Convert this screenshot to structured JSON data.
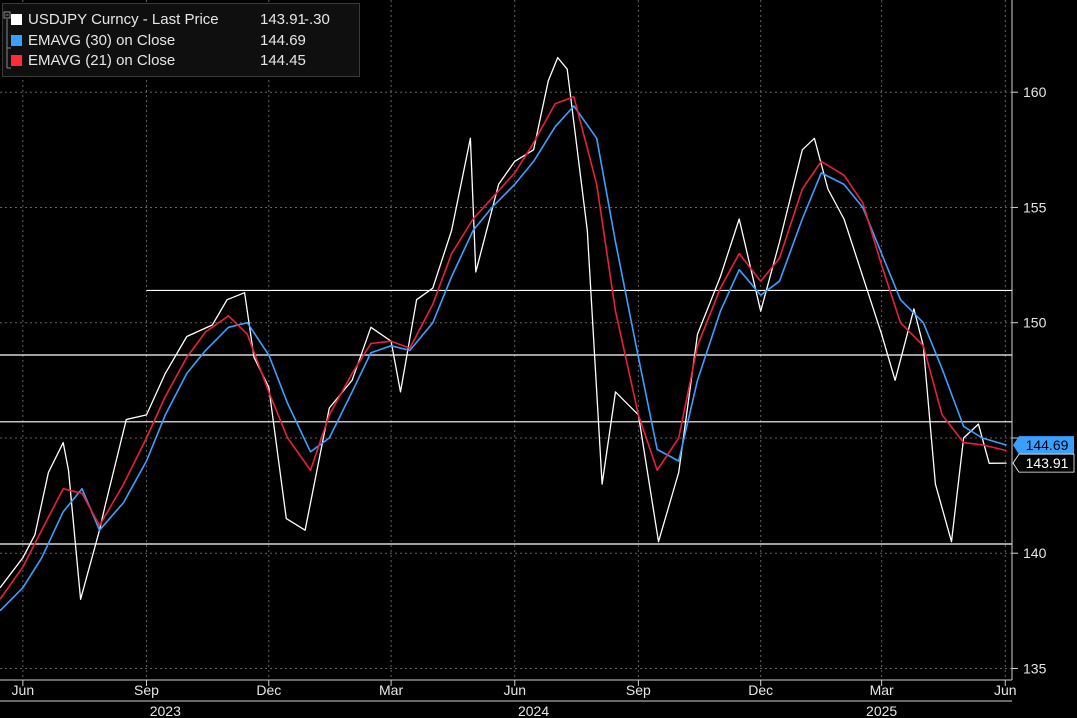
{
  "legend": [
    {
      "label": "USDJPY Curncy - Last Price",
      "value": "143.91",
      "change": "-.30",
      "color": "#ffffff"
    },
    {
      "label": "EMAVG (30)  on Close",
      "value": "144.69",
      "change": "",
      "color": "#3aa0ff"
    },
    {
      "label": "EMAVG (21)  on Close",
      "value": "144.45",
      "change": "",
      "color": "#ff2a3a"
    }
  ],
  "price_tags": {
    "ema30": "144.69",
    "last": "143.91"
  },
  "colors": {
    "background": "#000000",
    "price": "#ffffff",
    "ema30": "#3aa0ff",
    "ema21": "#e8203a",
    "grid": "#8a8a8a"
  },
  "chart_data": {
    "type": "line",
    "title": "",
    "ylabel": "",
    "ylim": [
      134.5,
      164
    ],
    "yticks": [
      135,
      140,
      145,
      150,
      155,
      160
    ],
    "yticks_labeled": [
      "135",
      "140",
      "150",
      "155",
      "160"
    ],
    "x_range": [
      "2023-05-15",
      "2025-06-06"
    ],
    "x_months": [
      "Jun",
      "Sep",
      "Dec",
      "Mar",
      "Jun",
      "Sep",
      "Dec",
      "Mar",
      "Jun"
    ],
    "x_month_dates": [
      "2023-06-01",
      "2023-09-01",
      "2023-12-01",
      "2024-03-01",
      "2024-06-01",
      "2024-09-01",
      "2024-12-01",
      "2025-03-01",
      "2025-06-01"
    ],
    "x_years": [
      {
        "label": "2023",
        "date": "2023-09-15"
      },
      {
        "label": "2024",
        "date": "2024-06-15"
      },
      {
        "label": "2025",
        "date": "2025-03-01"
      }
    ],
    "grid": true,
    "legend_position": "top-left",
    "hlines": [
      {
        "y": 151.4,
        "from": "2023-09-01"
      },
      {
        "y": 148.6,
        "from": "2023-05-15"
      },
      {
        "y": 145.7,
        "from": "2023-05-15"
      },
      {
        "y": 140.4,
        "from": "2023-05-15"
      }
    ],
    "series": [
      {
        "name": "USDJPY Curncy - Last Price",
        "x": [
          "2023-05-15",
          "2023-06-01",
          "2023-06-10",
          "2023-06-20",
          "2023-07-01",
          "2023-07-05",
          "2023-07-14",
          "2023-07-28",
          "2023-08-01",
          "2023-08-17",
          "2023-09-01",
          "2023-09-15",
          "2023-10-01",
          "2023-10-20",
          "2023-10-31",
          "2023-11-13",
          "2023-11-20",
          "2023-12-01",
          "2023-12-14",
          "2023-12-28",
          "2024-01-15",
          "2024-02-01",
          "2024-02-15",
          "2024-03-01",
          "2024-03-08",
          "2024-03-20",
          "2024-04-01",
          "2024-04-15",
          "2024-04-29",
          "2024-05-03",
          "2024-05-20",
          "2024-06-01",
          "2024-06-15",
          "2024-06-26",
          "2024-07-03",
          "2024-07-10",
          "2024-07-25",
          "2024-08-05",
          "2024-08-15",
          "2024-09-01",
          "2024-09-16",
          "2024-10-01",
          "2024-10-15",
          "2024-11-01",
          "2024-11-15",
          "2024-12-01",
          "2024-12-15",
          "2025-01-01",
          "2025-01-10",
          "2025-01-20",
          "2025-02-01",
          "2025-02-15",
          "2025-03-01",
          "2025-03-11",
          "2025-03-25",
          "2025-04-01",
          "2025-04-10",
          "2025-04-22",
          "2025-05-01",
          "2025-05-12",
          "2025-05-20",
          "2025-06-02"
        ],
        "values": [
          138.5,
          139.8,
          140.8,
          143.5,
          144.8,
          143.6,
          138.0,
          141.0,
          142.0,
          145.8,
          146.0,
          147.8,
          149.4,
          149.9,
          151.0,
          151.3,
          148.5,
          147.2,
          141.5,
          141.0,
          146.3,
          147.5,
          149.8,
          149.2,
          147.0,
          151.0,
          151.5,
          154.0,
          158.0,
          152.2,
          156.0,
          157.0,
          157.5,
          160.5,
          161.5,
          161.0,
          154.0,
          143.0,
          147.0,
          146.0,
          140.5,
          143.5,
          149.5,
          152.0,
          154.5,
          150.5,
          153.5,
          157.5,
          158.0,
          155.8,
          154.5,
          152.0,
          149.5,
          147.5,
          150.6,
          149.0,
          143.0,
          140.5,
          145.0,
          145.6,
          143.9,
          143.91
        ]
      },
      {
        "name": "EMAVG (30) on Close",
        "x": [
          "2023-05-15",
          "2023-06-01",
          "2023-06-15",
          "2023-07-01",
          "2023-07-15",
          "2023-07-28",
          "2023-08-15",
          "2023-09-01",
          "2023-09-15",
          "2023-10-01",
          "2023-10-15",
          "2023-11-01",
          "2023-11-15",
          "2023-12-01",
          "2023-12-15",
          "2024-01-01",
          "2024-01-15",
          "2024-02-01",
          "2024-02-15",
          "2024-03-01",
          "2024-03-15",
          "2024-04-01",
          "2024-04-15",
          "2024-05-01",
          "2024-05-15",
          "2024-06-01",
          "2024-06-15",
          "2024-07-01",
          "2024-07-15",
          "2024-08-01",
          "2024-08-15",
          "2024-09-01",
          "2024-09-15",
          "2024-10-01",
          "2024-10-15",
          "2024-11-01",
          "2024-11-15",
          "2024-12-01",
          "2024-12-15",
          "2025-01-01",
          "2025-01-15",
          "2025-02-01",
          "2025-02-15",
          "2025-03-01",
          "2025-03-15",
          "2025-04-01",
          "2025-04-15",
          "2025-05-01",
          "2025-05-15",
          "2025-06-02"
        ],
        "values": [
          137.5,
          138.5,
          139.8,
          141.8,
          142.8,
          141.0,
          142.2,
          144.0,
          146.0,
          147.8,
          148.8,
          149.8,
          150.0,
          148.6,
          146.5,
          144.4,
          145.0,
          147.0,
          148.7,
          149.0,
          148.8,
          150.0,
          152.0,
          154.0,
          155.0,
          156.0,
          157.0,
          158.5,
          159.4,
          158.0,
          153.5,
          148.5,
          144.5,
          144.0,
          147.5,
          150.5,
          152.3,
          151.2,
          151.8,
          154.5,
          156.5,
          156.0,
          155.0,
          153.0,
          151.0,
          150.0,
          148.0,
          145.5,
          145.0,
          144.69
        ]
      },
      {
        "name": "EMAVG (21) on Close",
        "x": [
          "2023-05-15",
          "2023-06-01",
          "2023-06-15",
          "2023-07-01",
          "2023-07-15",
          "2023-07-28",
          "2023-08-15",
          "2023-09-01",
          "2023-09-15",
          "2023-10-01",
          "2023-10-15",
          "2023-11-01",
          "2023-11-15",
          "2023-12-01",
          "2023-12-15",
          "2024-01-01",
          "2024-01-15",
          "2024-02-01",
          "2024-02-15",
          "2024-03-01",
          "2024-03-15",
          "2024-04-01",
          "2024-04-15",
          "2024-05-01",
          "2024-05-15",
          "2024-06-01",
          "2024-06-15",
          "2024-07-01",
          "2024-07-15",
          "2024-08-01",
          "2024-08-15",
          "2024-09-01",
          "2024-09-15",
          "2024-10-01",
          "2024-10-15",
          "2024-11-01",
          "2024-11-15",
          "2024-12-01",
          "2024-12-15",
          "2025-01-01",
          "2025-01-15",
          "2025-02-01",
          "2025-02-15",
          "2025-03-01",
          "2025-03-15",
          "2025-04-01",
          "2025-04-15",
          "2025-05-01",
          "2025-05-15",
          "2025-06-02"
        ],
        "values": [
          138.0,
          139.4,
          141.0,
          142.8,
          142.6,
          141.2,
          143.0,
          145.0,
          146.8,
          148.5,
          149.6,
          150.3,
          149.5,
          147.0,
          145.0,
          143.6,
          146.0,
          147.8,
          149.1,
          149.2,
          148.9,
          150.8,
          153.0,
          154.5,
          155.4,
          156.5,
          157.8,
          159.5,
          159.8,
          156.0,
          150.5,
          146.0,
          143.6,
          145.0,
          149.0,
          151.5,
          153.0,
          151.8,
          152.8,
          155.8,
          157.0,
          156.4,
          155.2,
          152.5,
          150.0,
          149.0,
          146.0,
          144.8,
          144.7,
          144.45
        ]
      }
    ]
  }
}
